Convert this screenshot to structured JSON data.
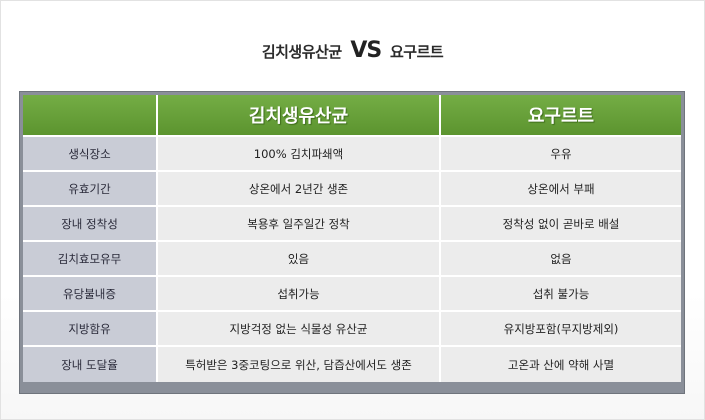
{
  "title": {
    "left": "김치생유산균",
    "vs": "VS",
    "right": "요구르트"
  },
  "columns": [
    "",
    "김치생유산균",
    "요구르트"
  ],
  "rows": [
    {
      "label": "생식장소",
      "a": "100% 김치파쇄액",
      "b": "우유"
    },
    {
      "label": "유효기간",
      "a": "상온에서 2년간 생존",
      "b": "상온에서 부패"
    },
    {
      "label": "장내 정착성",
      "a": "복용후 일주일간 정착",
      "b": "정착성 없이 곧바로 배설"
    },
    {
      "label": "김치효모유무",
      "a": "있음",
      "b": "없음"
    },
    {
      "label": "유당불내증",
      "a": "섭취가능",
      "b": "섭취 불가능"
    },
    {
      "label": "지방함유",
      "a": "지방걱정 없는 식물성 유산균",
      "b": "유지방포함(무지방제외)"
    },
    {
      "label": "장내 도달율",
      "a": "특허받은 3중코팅으로 위산, 담즙산에서도 생존",
      "b": "고온과 산에 약해 사멸"
    }
  ]
}
